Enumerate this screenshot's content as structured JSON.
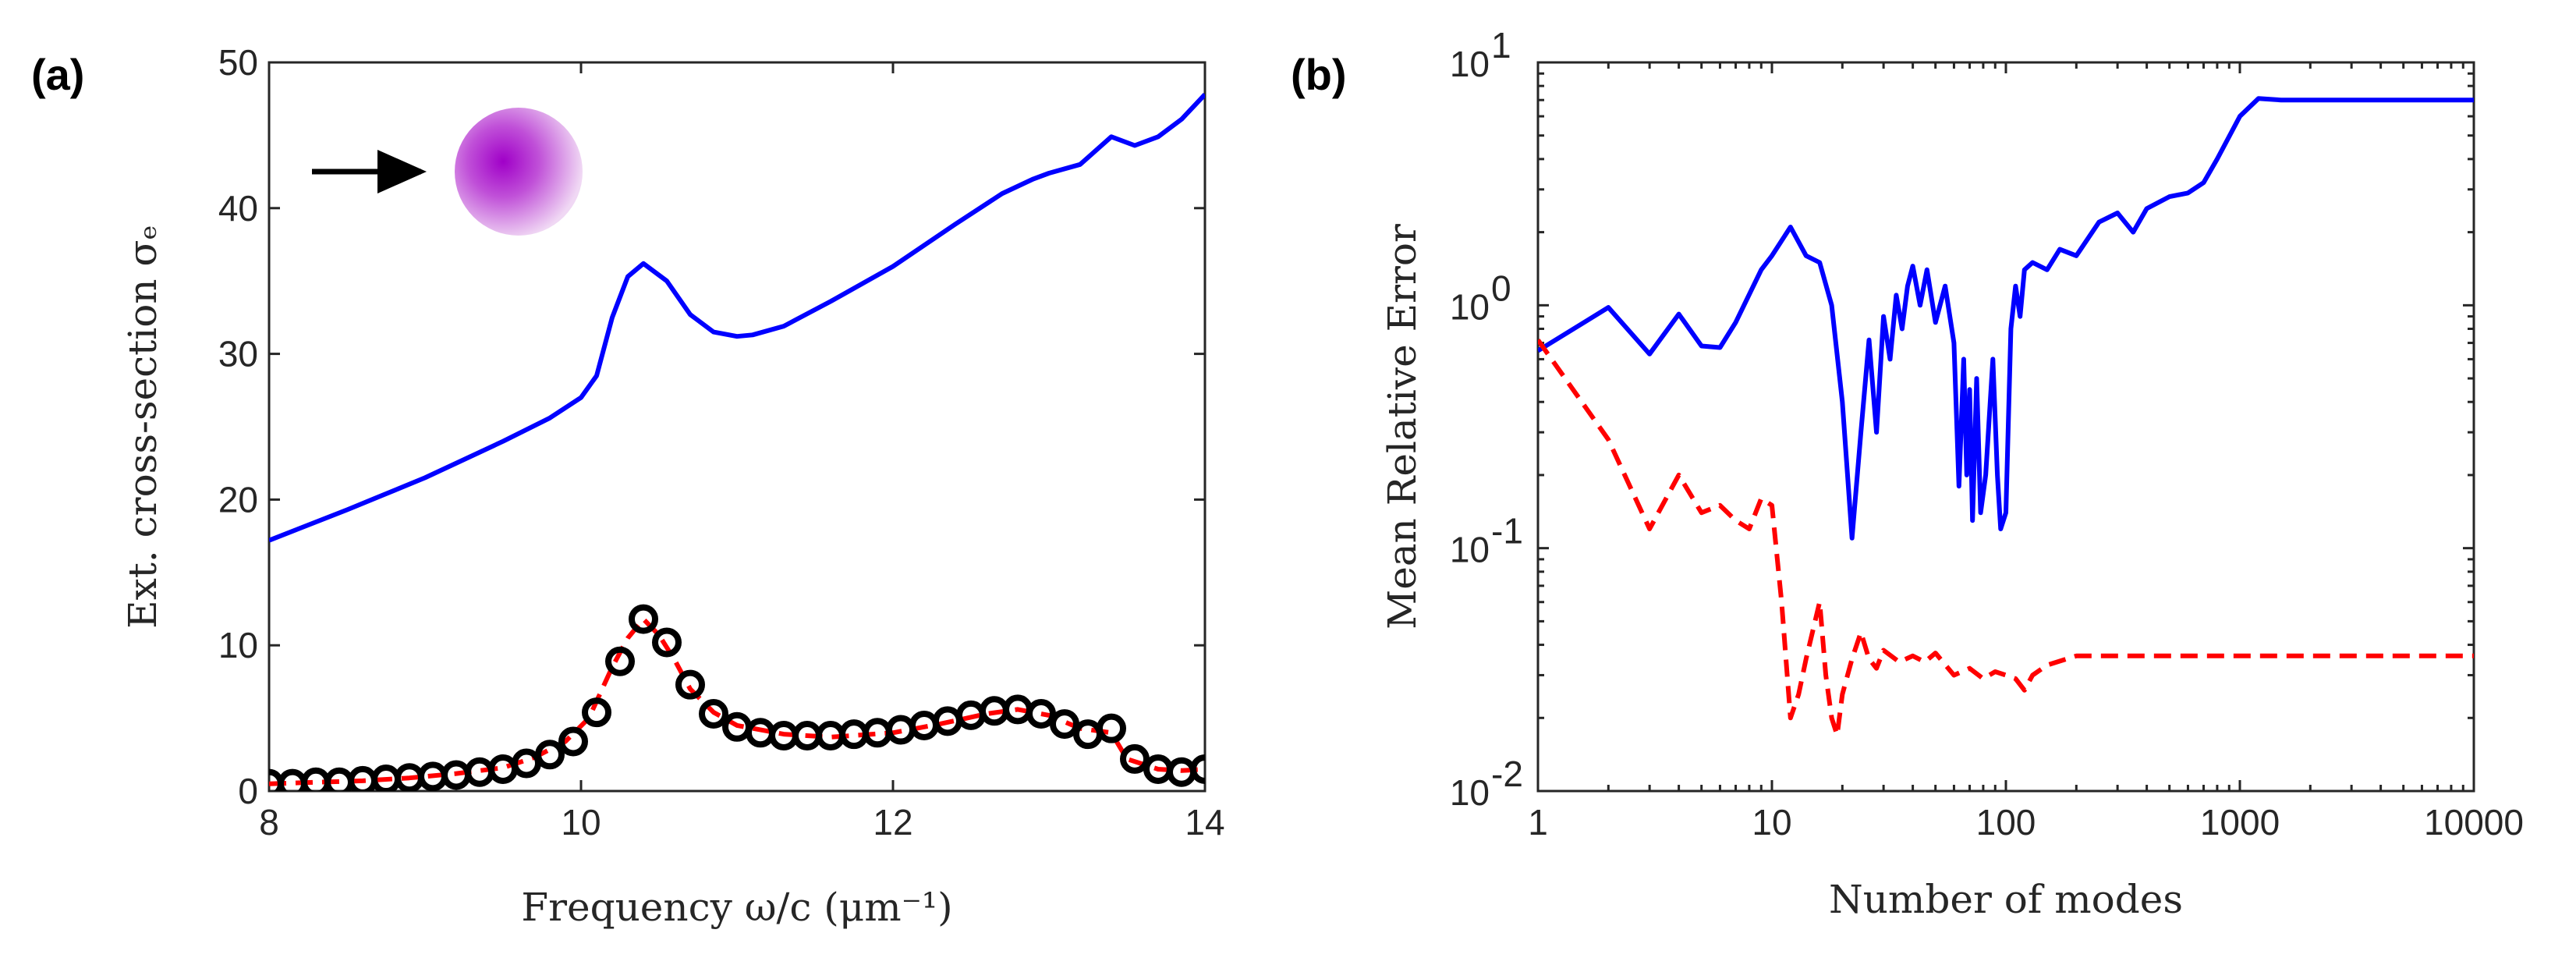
{
  "chart_data": [
    {
      "panel_label": "(a)",
      "type": "line",
      "xlabel": "Frequency ω/c (μm⁻¹)",
      "ylabel": "Ext. cross-section σₑ",
      "xlim": [
        8,
        14
      ],
      "ylim": [
        0,
        50
      ],
      "xticks": [
        "8",
        "10",
        "12",
        "14"
      ],
      "yticks": [
        "0",
        "10",
        "20",
        "30",
        "40",
        "50"
      ],
      "inset": "incident arrow pointing at a purple sphere",
      "colors": {
        "blue": "#0000ff",
        "red": "#ff0000",
        "marker": "#000000"
      },
      "series": [
        {
          "name": "blue-solid",
          "style": "solid",
          "x": [
            8.0,
            8.5,
            9.0,
            9.5,
            9.8,
            10.0,
            10.1,
            10.2,
            10.3,
            10.4,
            10.55,
            10.7,
            10.85,
            11.0,
            11.1,
            11.3,
            11.6,
            12.0,
            12.4,
            12.7,
            12.9,
            13.0,
            13.2,
            13.4,
            13.55,
            13.7,
            13.85,
            14.0
          ],
          "y": [
            17.2,
            19.3,
            21.5,
            24.0,
            25.6,
            27.0,
            28.5,
            32.5,
            35.3,
            36.2,
            35.0,
            32.7,
            31.5,
            31.2,
            31.3,
            31.9,
            33.6,
            36.0,
            38.9,
            41.0,
            42.0,
            42.4,
            43.0,
            44.9,
            44.3,
            44.9,
            46.1,
            47.8
          ]
        },
        {
          "name": "red-dashed",
          "style": "dashed",
          "x": [
            8.0,
            8.3,
            8.6,
            8.9,
            9.2,
            9.5,
            9.7,
            9.9,
            10.05,
            10.2,
            10.3,
            10.4,
            10.5,
            10.6,
            10.7,
            10.85,
            11.0,
            11.3,
            11.6,
            12.0,
            12.3,
            12.6,
            12.8,
            13.0,
            13.2,
            13.4,
            13.5,
            13.7,
            13.85,
            14.0
          ],
          "y": [
            0.5,
            0.6,
            0.7,
            0.9,
            1.2,
            1.6,
            2.3,
            3.4,
            5.0,
            8.5,
            10.5,
            11.8,
            10.7,
            9.0,
            7.0,
            5.4,
            4.5,
            3.9,
            3.7,
            4.0,
            4.6,
            5.3,
            5.6,
            5.2,
            4.3,
            4.0,
            2.2,
            1.5,
            1.4,
            1.5
          ]
        },
        {
          "name": "open-circles",
          "style": "markers",
          "x": [
            8.0,
            8.15,
            8.3,
            8.45,
            8.6,
            8.75,
            8.9,
            9.05,
            9.2,
            9.35,
            9.5,
            9.65,
            9.8,
            9.95,
            10.1,
            10.25,
            10.4,
            10.55,
            10.7,
            10.85,
            11.0,
            11.15,
            11.3,
            11.45,
            11.6,
            11.75,
            11.9,
            12.05,
            12.2,
            12.35,
            12.5,
            12.65,
            12.8,
            12.95,
            13.1,
            13.25,
            13.4,
            13.55,
            13.7,
            13.85,
            14.0
          ],
          "y": [
            0.5,
            0.5,
            0.6,
            0.6,
            0.7,
            0.8,
            0.9,
            1.0,
            1.1,
            1.3,
            1.5,
            1.9,
            2.5,
            3.4,
            5.4,
            8.9,
            11.8,
            10.2,
            7.3,
            5.3,
            4.4,
            4.0,
            3.8,
            3.8,
            3.8,
            3.9,
            4.0,
            4.2,
            4.5,
            4.8,
            5.2,
            5.5,
            5.6,
            5.3,
            4.6,
            3.9,
            4.3,
            2.2,
            1.5,
            1.3,
            1.5
          ]
        }
      ]
    },
    {
      "panel_label": "(b)",
      "type": "line",
      "xscale": "log",
      "yscale": "log",
      "xlabel": "Number of modes",
      "ylabel": "Mean Relative Error",
      "xlim": [
        1,
        10000
      ],
      "ylim": [
        0.01,
        10
      ],
      "xticks": [
        "1",
        "10",
        "100",
        "1000",
        "10000"
      ],
      "yticks": [
        {
          "base": "10",
          "exp": "-2"
        },
        {
          "base": "10",
          "exp": "-1"
        },
        {
          "base": "10",
          "exp": "0"
        },
        {
          "base": "10",
          "exp": "1"
        }
      ],
      "colors": {
        "blue": "#0000ff",
        "red": "#ff0000"
      },
      "series": [
        {
          "name": "blue-solid",
          "style": "solid",
          "x": [
            1,
            2,
            3,
            4,
            5,
            6,
            7,
            9,
            10,
            12,
            14,
            16,
            18,
            20,
            22,
            24,
            26,
            28,
            30,
            32,
            34,
            36,
            38,
            40,
            43,
            46,
            50,
            55,
            60,
            63,
            66,
            68,
            70,
            72,
            75,
            78,
            82,
            88,
            92,
            95,
            100,
            105,
            110,
            115,
            120,
            130,
            150,
            170,
            200,
            250,
            300,
            350,
            400,
            500,
            600,
            700,
            800,
            1000,
            1200,
            1500,
            2000,
            5000,
            10000
          ],
          "y": [
            0.65,
            0.98,
            0.63,
            0.92,
            0.68,
            0.67,
            0.85,
            1.4,
            1.6,
            2.1,
            1.6,
            1.5,
            1.0,
            0.4,
            0.11,
            0.3,
            0.72,
            0.3,
            0.9,
            0.6,
            1.1,
            0.8,
            1.2,
            1.45,
            1.0,
            1.4,
            0.85,
            1.2,
            0.7,
            0.18,
            0.6,
            0.2,
            0.45,
            0.13,
            0.5,
            0.14,
            0.2,
            0.6,
            0.2,
            0.12,
            0.14,
            0.8,
            1.2,
            0.9,
            1.4,
            1.5,
            1.4,
            1.7,
            1.6,
            2.2,
            2.4,
            2.0,
            2.5,
            2.8,
            2.9,
            3.2,
            4.0,
            6.0,
            7.1,
            7.0,
            7.0,
            7.0,
            7.0
          ]
        },
        {
          "name": "red-dashed",
          "style": "dashed",
          "x": [
            1,
            2,
            3,
            4,
            5,
            6,
            7,
            8,
            9,
            10,
            11,
            12,
            13,
            14,
            16,
            17,
            18,
            19,
            20,
            22,
            24,
            26,
            28,
            30,
            35,
            40,
            45,
            50,
            60,
            70,
            80,
            90,
            100,
            110,
            120,
            130,
            150,
            200,
            300,
            500,
            1000,
            2000,
            5000,
            10000
          ],
          "y": [
            0.72,
            0.28,
            0.12,
            0.2,
            0.14,
            0.15,
            0.13,
            0.12,
            0.16,
            0.15,
            0.06,
            0.02,
            0.025,
            0.035,
            0.06,
            0.03,
            0.02,
            0.017,
            0.025,
            0.035,
            0.045,
            0.035,
            0.032,
            0.038,
            0.034,
            0.036,
            0.034,
            0.037,
            0.03,
            0.032,
            0.029,
            0.031,
            0.03,
            0.029,
            0.026,
            0.03,
            0.033,
            0.036,
            0.036,
            0.036,
            0.036,
            0.036,
            0.036,
            0.036
          ]
        }
      ]
    }
  ]
}
